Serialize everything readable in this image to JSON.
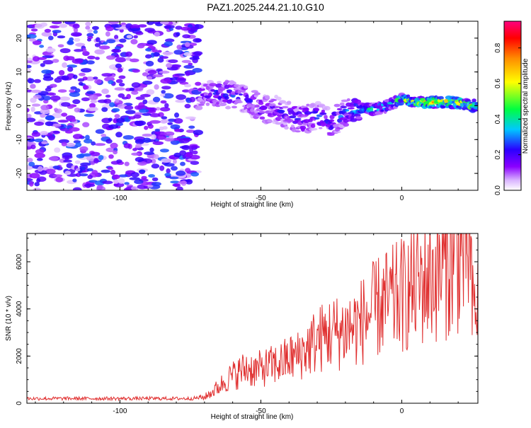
{
  "title": "PAZ1.2025.244.21.10.G10",
  "chart_data": [
    {
      "type": "heatmap",
      "xlabel": "Height of straight line (km)",
      "ylabel": "Frequency (Hz)",
      "xlim": [
        -133,
        27
      ],
      "ylim": [
        -25,
        25
      ],
      "xticks": [
        -100,
        -50,
        0
      ],
      "xtick_labels": [
        "-100",
        "-50",
        "0"
      ],
      "yticks": [
        -20,
        -10,
        0,
        10,
        20
      ],
      "ytick_labels": [
        "-20",
        "-10",
        "0",
        "10",
        "20"
      ],
      "colorbar": {
        "label": "Normalized spectral amplitude",
        "range": [
          0,
          0.95
        ],
        "ticks": [
          0,
          0.2,
          0.4,
          0.6,
          0.8
        ],
        "tick_labels": [
          "0.0",
          "0.2",
          "0.4",
          "0.6",
          "0.8"
        ]
      },
      "noise_region": {
        "x": [
          -133,
          -72
        ],
        "amplitude": 0.3
      },
      "ridge": {
        "x": [
          -72,
          -65,
          -60,
          -55,
          -50,
          -45,
          -40,
          -35,
          -30,
          -25,
          -20,
          -15,
          -10,
          -5,
          0,
          5,
          10,
          15,
          20,
          25,
          27
        ],
        "freq": [
          3,
          4,
          3,
          2,
          -1,
          -1,
          -3,
          -4,
          -3,
          -5,
          -2,
          -1,
          -1,
          0,
          2,
          1,
          1,
          1,
          1,
          0,
          0
        ],
        "amplitude": [
          0.2,
          0.3,
          0.3,
          0.25,
          0.25,
          0.25,
          0.25,
          0.3,
          0.3,
          0.3,
          0.35,
          0.4,
          0.5,
          0.5,
          0.6,
          0.75,
          0.9,
          0.9,
          0.85,
          0.8,
          0.8
        ]
      }
    },
    {
      "type": "line",
      "xlabel": "Height of straight line (km)",
      "ylabel": "SNR (10 * v/v)",
      "xlim": [
        -133,
        27
      ],
      "ylim": [
        0,
        7200
      ],
      "xticks": [
        -100,
        -50,
        0
      ],
      "xtick_labels": [
        "-100",
        "-50",
        "0"
      ],
      "yticks": [
        0,
        2000,
        4000,
        6000
      ],
      "ytick_labels": [
        "0",
        "2000",
        "4000",
        "6000"
      ],
      "color": "#e03030",
      "series": [
        {
          "name": "SNR",
          "x": [
            -133,
            -120,
            -110,
            -100,
            -90,
            -80,
            -75,
            -70,
            -67,
            -64,
            -61,
            -58,
            -55,
            -52,
            -49,
            -46,
            -43,
            -40,
            -37,
            -34,
            -31,
            -28,
            -25,
            -22,
            -19,
            -16,
            -13,
            -10,
            -7,
            -4,
            -1,
            2,
            5,
            8,
            11,
            14,
            17,
            20,
            23,
            24,
            25,
            26,
            27
          ],
          "y": [
            200,
            200,
            200,
            200,
            200,
            200,
            200,
            250,
            500,
            800,
            1100,
            1300,
            1500,
            1400,
            1500,
            1600,
            1700,
            1900,
            2000,
            2300,
            2600,
            2800,
            3000,
            3000,
            3200,
            3300,
            3600,
            3900,
            4200,
            4300,
            4500,
            4700,
            5000,
            5200,
            5400,
            5700,
            6000,
            6300,
            6500,
            6700,
            3900,
            4100,
            4200
          ]
        }
      ]
    }
  ]
}
